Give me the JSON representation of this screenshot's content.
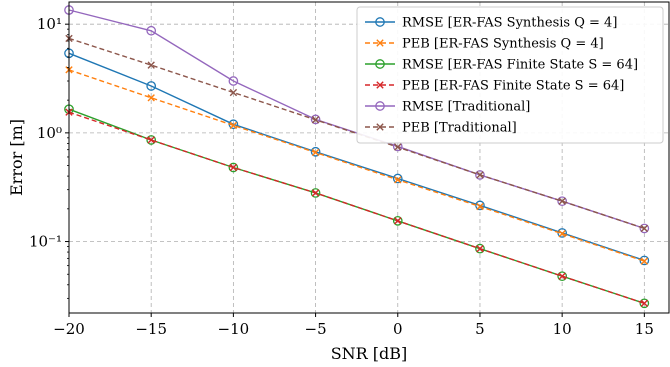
{
  "chart_data": {
    "type": "line",
    "xlabel": "SNR [dB]",
    "ylabel": "Error [m]",
    "x": [
      -20,
      -15,
      -10,
      -5,
      0,
      5,
      10,
      15
    ],
    "xlim": [
      -20,
      16.5
    ],
    "xticks": [
      -20,
      -15,
      -10,
      -5,
      0,
      5,
      10,
      15
    ],
    "xtick_labels": [
      "−20",
      "−15",
      "−10",
      "−5",
      "0",
      "5",
      "10",
      "15"
    ],
    "yscale": "log",
    "ylim": [
      0.022,
      16
    ],
    "yticks": [
      0.1,
      1,
      10
    ],
    "ytick_labels": [
      "10⁻¹",
      "10⁰",
      "10¹"
    ],
    "grid": true,
    "legend_position": "top-right",
    "series": [
      {
        "name": "RMSE [ER-FAS Synthesis Q = 4]",
        "color": "#1f77b4",
        "style": "solid",
        "marker": "circle",
        "values": [
          5.4,
          2.7,
          1.2,
          0.67,
          0.38,
          0.215,
          0.12,
          0.067
        ]
      },
      {
        "name": "PEB [ER-FAS Synthesis Q = 4]",
        "color": "#ff7f0e",
        "style": "dashed",
        "marker": "x",
        "values": [
          3.8,
          2.1,
          1.17,
          0.66,
          0.37,
          0.21,
          0.118,
          0.066
        ]
      },
      {
        "name": "RMSE [ER-FAS Finite State S = 64]",
        "color": "#2ca02c",
        "style": "solid",
        "marker": "circle",
        "values": [
          1.65,
          0.86,
          0.48,
          0.28,
          0.155,
          0.086,
          0.048,
          0.027
        ]
      },
      {
        "name": "PEB [ER-FAS Finite State S = 64]",
        "color": "#d62728",
        "style": "dashed",
        "marker": "x",
        "values": [
          1.55,
          0.86,
          0.48,
          0.28,
          0.155,
          0.086,
          0.048,
          0.027
        ]
      },
      {
        "name": "RMSE [Traditional]",
        "color": "#9467bd",
        "style": "solid",
        "marker": "circle",
        "values": [
          13.5,
          8.7,
          3.0,
          1.33,
          0.75,
          0.41,
          0.235,
          0.132
        ]
      },
      {
        "name": "PEB [Traditional]",
        "color": "#8c564b",
        "style": "dashed",
        "marker": "x",
        "values": [
          7.4,
          4.2,
          2.35,
          1.32,
          0.74,
          0.41,
          0.235,
          0.132
        ]
      }
    ]
  }
}
